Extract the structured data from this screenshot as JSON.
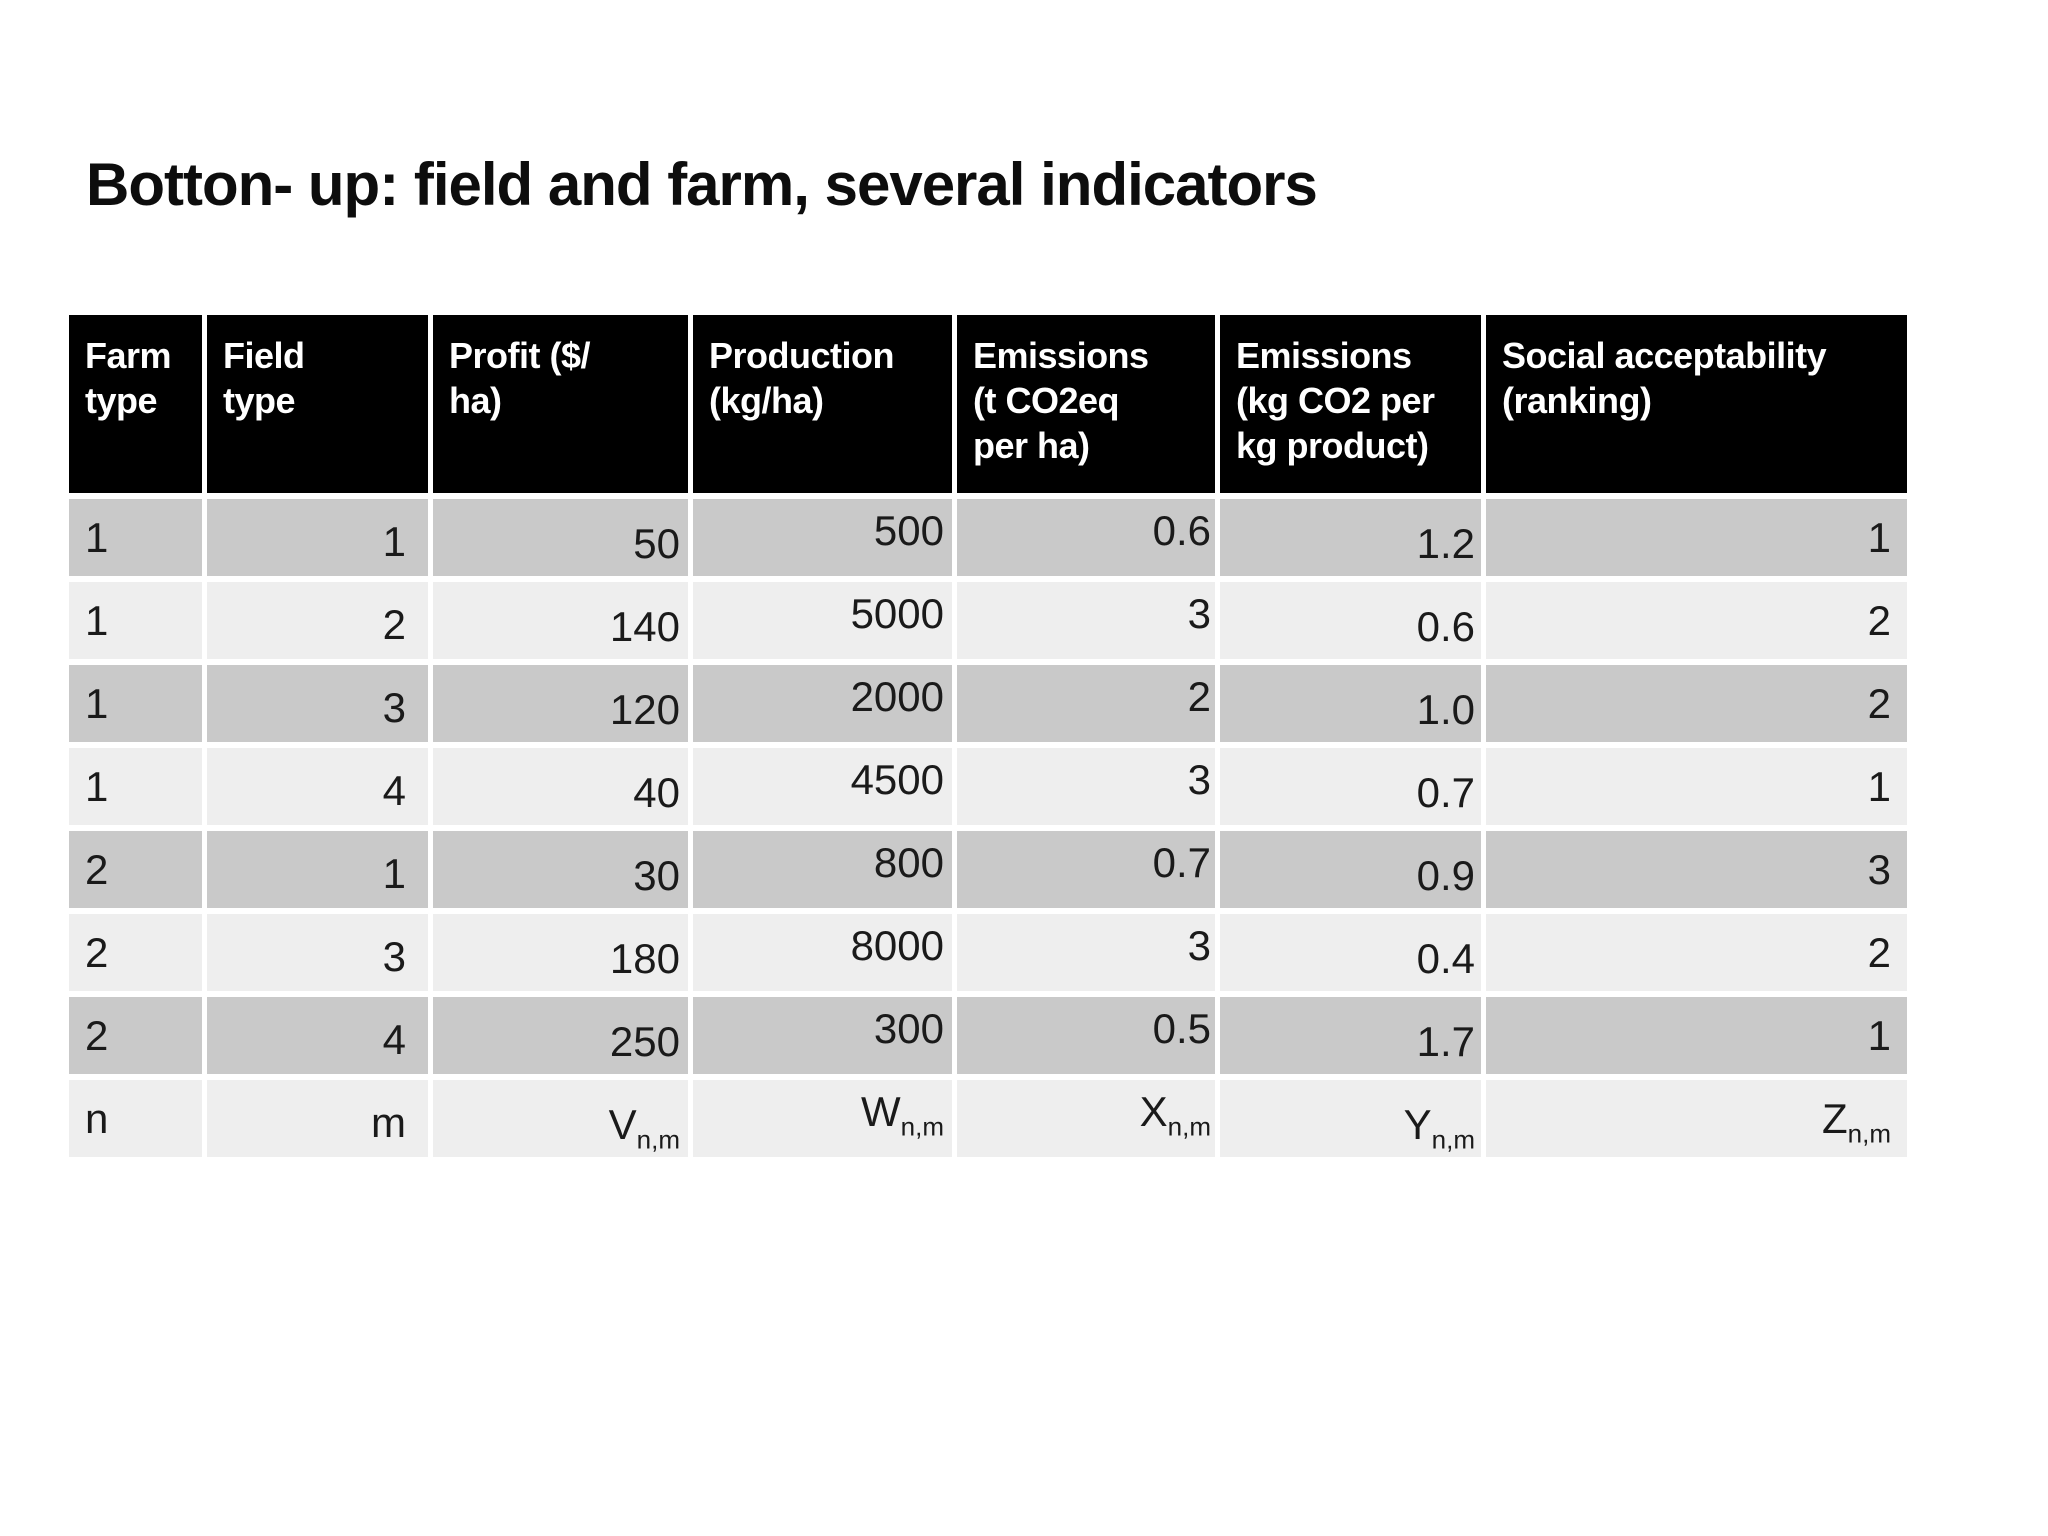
{
  "slide": {
    "title": "Botton- up: field and farm, several indicators"
  },
  "table": {
    "headers": [
      {
        "id": "farm-type",
        "label": "Farm type",
        "lines": [
          "Farm",
          "type"
        ]
      },
      {
        "id": "field-type",
        "label": "Field type",
        "lines": [
          "Field",
          "type"
        ]
      },
      {
        "id": "profit",
        "label": "Profit ($/ha)",
        "lines": [
          "Profit ($/",
          "ha)"
        ]
      },
      {
        "id": "production",
        "label": "Production (kg/ha)",
        "lines": [
          "Production",
          "(kg/ha)"
        ]
      },
      {
        "id": "emissions-area",
        "label": "Emissions (t CO2eq per ha)",
        "lines": [
          "Emissions",
          "(t CO2eq",
          "per ha)"
        ]
      },
      {
        "id": "emissions-product",
        "label": "Emissions (kg CO2 per kg product)",
        "lines": [
          "Emissions",
          "(kg CO2 per",
          "kg product)"
        ]
      },
      {
        "id": "social-acceptability",
        "label": "Social acceptability (ranking)",
        "lines": [
          "Social acceptability",
          "(ranking)"
        ]
      }
    ],
    "rows": [
      [
        "1",
        "1",
        "50",
        "500",
        "0.6",
        "1.2",
        "1"
      ],
      [
        "1",
        "2",
        "140",
        "5000",
        "3",
        "0.6",
        "2"
      ],
      [
        "1",
        "3",
        "120",
        "2000",
        "2",
        "1.0",
        "2"
      ],
      [
        "1",
        "4",
        "40",
        "4500",
        "3",
        "0.7",
        "1"
      ],
      [
        "2",
        "1",
        "30",
        "800",
        "0.7",
        "0.9",
        "3"
      ],
      [
        "2",
        "3",
        "180",
        "8000",
        "3",
        "0.4",
        "2"
      ],
      [
        "2",
        "4",
        "250",
        "300",
        "0.5",
        "1.7",
        "1"
      ],
      [
        {
          "base": "n",
          "sub": ""
        },
        {
          "base": "m",
          "sub": ""
        },
        {
          "base": "V",
          "sub": "n,m"
        },
        {
          "base": "W",
          "sub": "n,m"
        },
        {
          "base": "X",
          "sub": "n,m"
        },
        {
          "base": "Y",
          "sub": "n,m"
        },
        {
          "base": "Z",
          "sub": "n,m"
        }
      ]
    ]
  },
  "colors": {
    "background": "#ffffff",
    "header_bg": "#000000",
    "header_text": "#ffffff",
    "row_dark": "#c9c9c9",
    "row_light": "#eeeeee",
    "grid": "#ffffff",
    "text": "#1a1a1a",
    "title": "#0d0d0d"
  }
}
